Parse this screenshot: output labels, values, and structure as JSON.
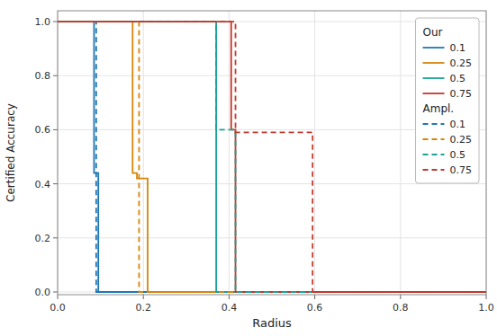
{
  "chart_data": {
    "type": "line",
    "xlabel": "Radius",
    "ylabel": "Certified Accuracy",
    "xlim": [
      0.0,
      1.0
    ],
    "ylim": [
      -0.01,
      1.04
    ],
    "xticks": [
      {
        "value": 0.0,
        "label": "0.0"
      },
      0.2,
      0.4,
      0.6,
      0.8,
      {
        "value": 1.0,
        "label": "1.0"
      }
    ],
    "yticks": [
      {
        "value": 0.0,
        "label": "0.0"
      },
      0.2,
      0.4,
      0.6,
      0.8,
      {
        "value": 1.0,
        "label": "1.0"
      }
    ],
    "grid": true,
    "legend": "upper right",
    "groups": [
      {
        "name": "Our",
        "series": [
          {
            "name": "0.1",
            "color": "#1f77b4",
            "line_style": "solid",
            "x": [
              0.0,
              0.085,
              0.085,
              0.095,
              0.095,
              1.0
            ],
            "values": [
              1.0,
              1.0,
              0.44,
              0.44,
              0.0,
              0.0
            ]
          },
          {
            "name": "0.25",
            "color": "#d4860b",
            "line_style": "solid",
            "x": [
              0.0,
              0.175,
              0.175,
              0.185,
              0.185,
              0.21,
              0.21,
              1.0
            ],
            "values": [
              1.0,
              1.0,
              0.44,
              0.44,
              0.42,
              0.42,
              0.0,
              0.0
            ]
          },
          {
            "name": "0.5",
            "color": "#17a398",
            "line_style": "solid",
            "x": [
              0.0,
              0.37,
              0.37,
              1.0
            ],
            "values": [
              1.0,
              1.0,
              0.0,
              0.0
            ]
          },
          {
            "name": "0.75",
            "color": "#c0392b",
            "line_style": "solid",
            "x": [
              0.0,
              0.405,
              0.405,
              0.415,
              0.415,
              1.0
            ],
            "values": [
              1.0,
              1.0,
              0.6,
              0.6,
              0.0,
              0.0
            ]
          }
        ]
      },
      {
        "name": "Ampl.",
        "series": [
          {
            "name": "0.1",
            "color": "#1f77b4",
            "line_style": "dashed",
            "x": [
              0.0,
              0.09,
              0.09,
              1.0
            ],
            "values": [
              1.0,
              1.0,
              0.0,
              0.0
            ]
          },
          {
            "name": "0.25",
            "color": "#d4860b",
            "line_style": "dashed",
            "x": [
              0.0,
              0.19,
              0.19,
              1.0
            ],
            "values": [
              1.0,
              1.0,
              0.0,
              0.0
            ]
          },
          {
            "name": "0.5",
            "color": "#17a398",
            "line_style": "dashed",
            "x": [
              0.0,
              0.37,
              0.37,
              0.415,
              0.415,
              0.585,
              0.585,
              1.0
            ],
            "values": [
              1.0,
              1.0,
              0.6,
              0.6,
              0.0,
              0.0,
              0.0,
              0.0
            ]
          },
          {
            "name": "0.75",
            "color": "#c0392b",
            "line_style": "dashed",
            "x": [
              0.0,
              0.415,
              0.415,
              0.595,
              0.595,
              0.625,
              0.625,
              1.0
            ],
            "values": [
              1.0,
              1.0,
              0.59,
              0.59,
              0.0,
              0.0,
              0.0,
              0.0
            ]
          }
        ]
      }
    ]
  }
}
